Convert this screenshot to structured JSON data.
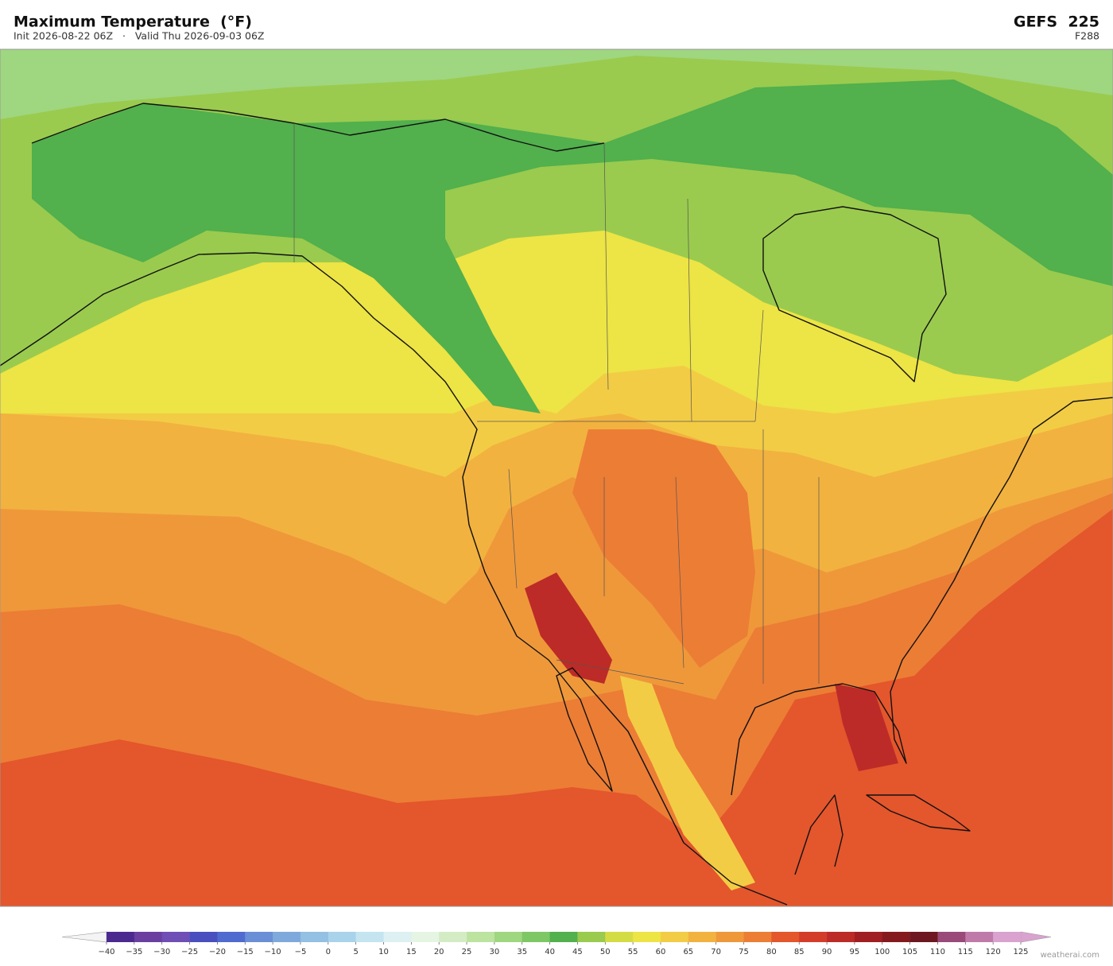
{
  "header": {
    "title": "Maximum Temperature  (°F)",
    "subtitle": "Init 2026-08-22 06Z   ·   Valid Thu 2026-09-03 06Z",
    "model": "GEFS  225",
    "forecast_hour": "F288"
  },
  "colorbar": {
    "ticks": [
      {
        "value": -40,
        "label": "−40"
      },
      {
        "value": -35,
        "label": "−35"
      },
      {
        "value": -30,
        "label": "−30"
      },
      {
        "value": -25,
        "label": "−25"
      },
      {
        "value": -20,
        "label": "−20"
      },
      {
        "value": -15,
        "label": "−15"
      },
      {
        "value": -10,
        "label": "−10"
      },
      {
        "value": -5,
        "label": "−5"
      },
      0,
      5,
      10,
      15,
      20,
      25,
      30,
      35,
      40,
      45,
      50,
      55,
      60,
      65,
      70,
      75,
      80,
      85,
      90,
      95,
      100,
      105,
      110,
      115,
      120,
      125
    ],
    "colors": [
      "#4b2a8f",
      "#6a3fa0",
      "#6f4fb5",
      "#4a4fc0",
      "#4f6bd0",
      "#6a8fd6",
      "#7fa9dc",
      "#93c0e3",
      "#a9d3ea",
      "#c4e4f0",
      "#ddf0f2",
      "#e6f4e4",
      "#d4ecc4",
      "#bde3a0",
      "#9fd680",
      "#7dc765",
      "#52b04d",
      "#9acb4e",
      "#d4dc45",
      "#ede445",
      "#f3cc45",
      "#f2b23f",
      "#ef983a",
      "#ec7d35",
      "#e4562c",
      "#d43c2a",
      "#bc2b27",
      "#a01f22",
      "#851a1e",
      "#6e1720",
      "#9a4a78",
      "#c07aaa",
      "#d9a2cf"
    ],
    "under_color": "#f4f4f4",
    "over_color": "#d9a2cf"
  },
  "footer": {
    "credit": "weatherai.com"
  }
}
